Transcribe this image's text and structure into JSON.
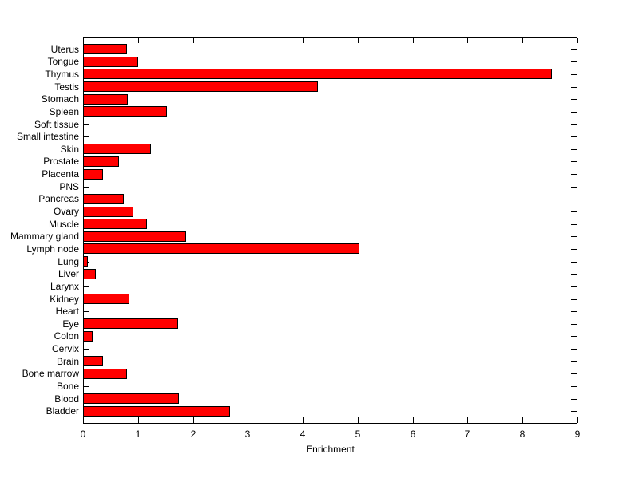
{
  "chart_data": {
    "type": "bar",
    "orientation": "horizontal",
    "title": "",
    "xlabel": "Enrichment",
    "ylabel": "",
    "categories_order": "top-to-bottom",
    "categories": [
      "Uterus",
      "Tongue",
      "Thymus",
      "Testis",
      "Stomach",
      "Spleen",
      "Soft tissue",
      "Small intestine",
      "Skin",
      "Prostate",
      "Placenta",
      "PNS",
      "Pancreas",
      "Ovary",
      "Muscle",
      "Mammary gland",
      "Lymph node",
      "Lung",
      "Liver",
      "Larynx",
      "Kidney",
      "Heart",
      "Eye",
      "Colon",
      "Cervix",
      "Brain",
      "Bone marrow",
      "Bone",
      "Blood",
      "Bladder"
    ],
    "values": [
      0.8,
      1.01,
      8.54,
      4.28,
      0.81,
      1.52,
      0,
      0,
      1.23,
      0.66,
      0.37,
      0,
      0.74,
      0.92,
      1.17,
      1.87,
      5.03,
      0.09,
      0.23,
      0,
      0.84,
      0,
      1.73,
      0.17,
      0,
      0.37,
      0.8,
      0,
      1.75,
      2.68
    ],
    "xlim": [
      0,
      9
    ],
    "xticks": [
      0,
      1,
      2,
      3,
      4,
      5,
      6,
      7,
      8,
      9
    ],
    "grid": false,
    "legend": "none",
    "bar_color": "#FF0000",
    "bar_edge_color": "#000000",
    "axis_color": "#000000",
    "background_color": "#FFFFFF"
  }
}
